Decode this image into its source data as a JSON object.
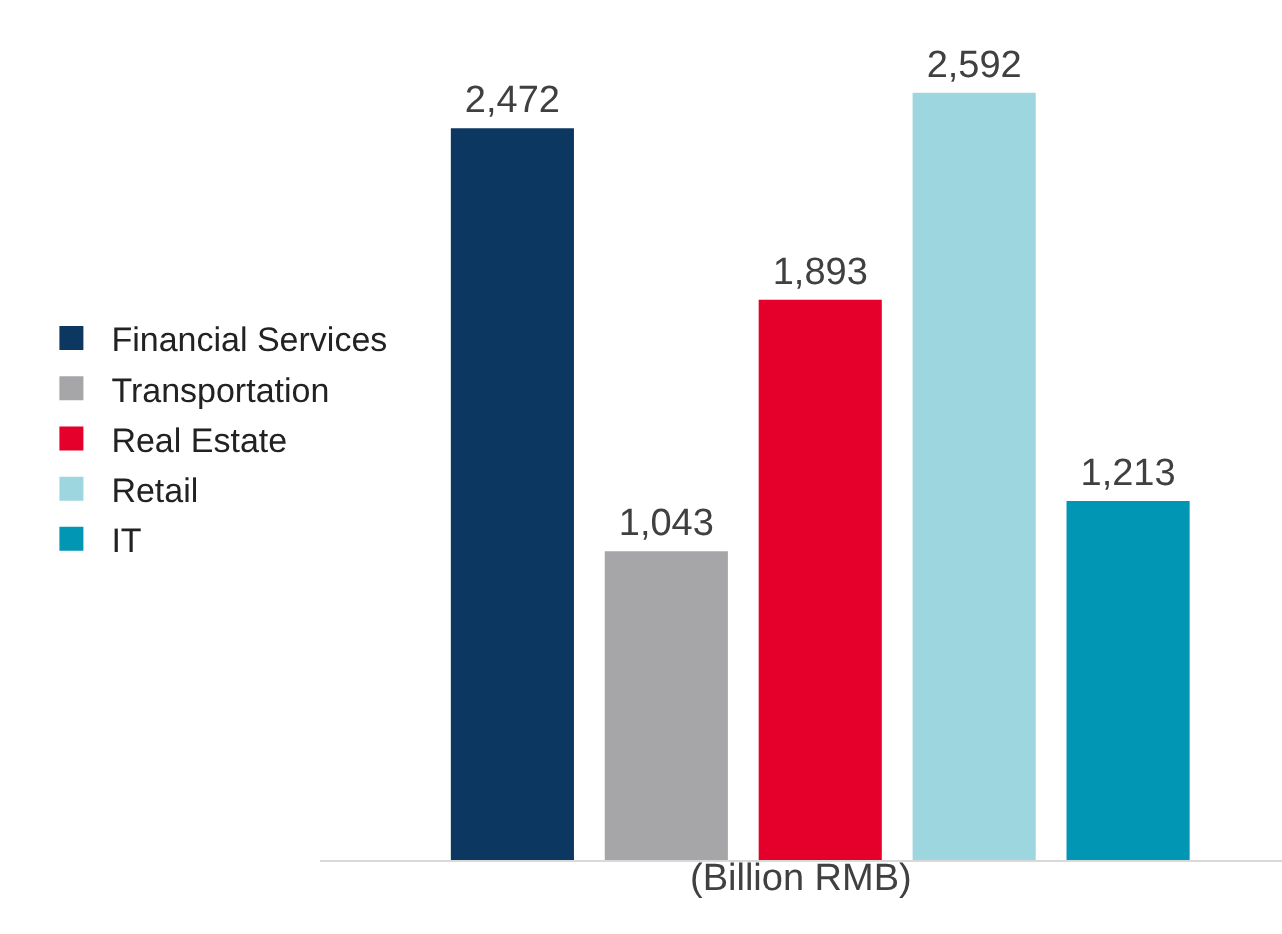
{
  "chart_data": {
    "type": "bar",
    "categories": [
      null,
      null,
      null,
      null,
      null
    ],
    "stacked": true,
    "series": [
      {
        "name": "Financial Services",
        "color": "#0b3761",
        "values": [
          2472,
          null,
          null,
          null,
          null
        ],
        "value_labels": [
          "2,472",
          null,
          null,
          null,
          null
        ]
      },
      {
        "name": "Transportation",
        "color": "#a6a6a8",
        "values": [
          null,
          1043,
          null,
          null,
          null
        ],
        "value_labels": [
          null,
          "1,043",
          null,
          null,
          null
        ]
      },
      {
        "name": "Real Estate",
        "color": "#e4002b",
        "values": [
          null,
          null,
          1893,
          null,
          null
        ],
        "value_labels": [
          null,
          null,
          "1,893",
          null,
          null
        ]
      },
      {
        "name": "Retail",
        "color": "#9ed6df",
        "values": [
          null,
          null,
          null,
          2592,
          null
        ],
        "value_labels": [
          null,
          null,
          null,
          "2,592",
          null
        ]
      },
      {
        "name": "IT",
        "color": "#0096b4",
        "values": [
          null,
          null,
          null,
          null,
          1213
        ],
        "value_labels": [
          null,
          null,
          null,
          null,
          "1,213"
        ]
      }
    ],
    "legend": "left",
    "annotations": [
      "(Billion RMB)"
    ]
  }
}
